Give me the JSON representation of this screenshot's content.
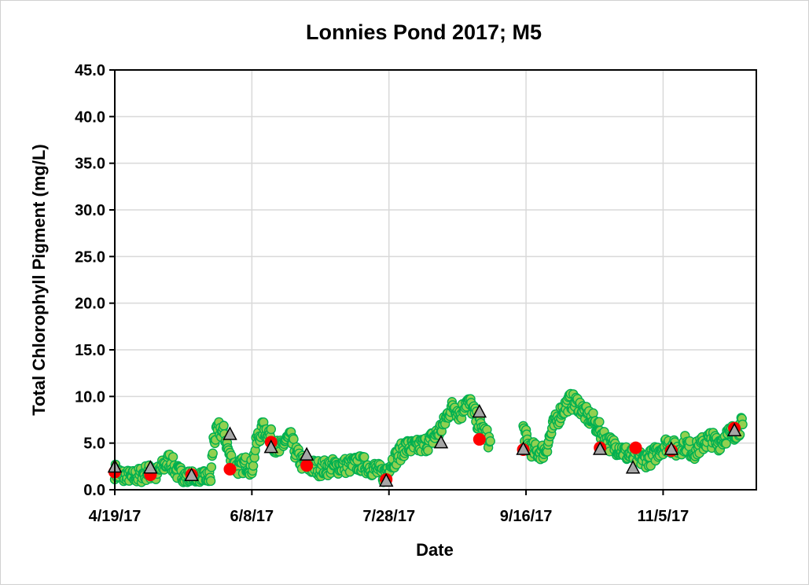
{
  "chart_data": {
    "type": "scatter",
    "title": "Lonnies Pond 2017; M5",
    "xlabel": "Date",
    "ylabel": "Total Chlorophyll Pigment (mg/L)",
    "xlim": [
      "2017-04-19",
      "2017-12-09"
    ],
    "ylim": [
      0,
      45
    ],
    "y_ticks": [
      "0.0",
      "5.0",
      "10.0",
      "15.0",
      "20.0",
      "25.0",
      "30.0",
      "35.0",
      "40.0",
      "45.0"
    ],
    "x_ticks": [
      "4/19/17",
      "6/8/17",
      "7/28/17",
      "9/16/17",
      "11/5/17"
    ],
    "grid": true,
    "legend": "none",
    "colors": {
      "continuous_fill": "#92d050",
      "continuous_edge": "#00b050",
      "red_points": "#ff0000",
      "triangle_fill": "#a6a6a6",
      "triangle_edge": "#000000"
    },
    "series": [
      {
        "marker": "circle-green",
        "gaps": [
          [
            "2017-09-03",
            "2017-09-15"
          ]
        ],
        "points": [
          [
            "2017-04-19",
            2.0
          ],
          [
            "2017-04-22",
            1.4
          ],
          [
            "2017-04-25",
            1.2
          ],
          [
            "2017-04-28",
            1.5
          ],
          [
            "2017-05-01",
            1.9
          ],
          [
            "2017-05-04",
            1.6
          ],
          [
            "2017-05-07",
            2.6
          ],
          [
            "2017-05-09",
            3.2
          ],
          [
            "2017-05-12",
            1.8
          ],
          [
            "2017-05-15",
            1.3
          ],
          [
            "2017-05-18",
            1.2
          ],
          [
            "2017-05-21",
            1.1
          ],
          [
            "2017-05-24",
            1.2
          ],
          [
            "2017-05-25",
            5.2
          ],
          [
            "2017-05-27",
            6.5
          ],
          [
            "2017-05-29",
            6.0
          ],
          [
            "2017-05-31",
            3.5
          ],
          [
            "2017-06-02",
            2.4
          ],
          [
            "2017-06-04",
            2.5
          ],
          [
            "2017-06-06",
            2.8
          ],
          [
            "2017-06-08",
            2.3
          ],
          [
            "2017-06-10",
            5.5
          ],
          [
            "2017-06-12",
            6.5
          ],
          [
            "2017-06-14",
            6.2
          ],
          [
            "2017-06-16",
            5.0
          ],
          [
            "2017-06-18",
            4.2
          ],
          [
            "2017-06-20",
            5.2
          ],
          [
            "2017-06-22",
            5.5
          ],
          [
            "2017-06-24",
            4.0
          ],
          [
            "2017-06-26",
            3.0
          ],
          [
            "2017-06-29",
            2.5
          ],
          [
            "2017-07-03",
            2.3
          ],
          [
            "2017-07-08",
            2.5
          ],
          [
            "2017-07-13",
            2.6
          ],
          [
            "2017-07-18",
            2.8
          ],
          [
            "2017-07-23",
            2.2
          ],
          [
            "2017-07-26",
            1.6
          ],
          [
            "2017-07-28",
            2.6
          ],
          [
            "2017-07-31",
            3.6
          ],
          [
            "2017-08-03",
            4.6
          ],
          [
            "2017-08-07",
            4.5
          ],
          [
            "2017-08-11",
            5.0
          ],
          [
            "2017-08-14",
            5.8
          ],
          [
            "2017-08-17",
            7.0
          ],
          [
            "2017-08-19",
            8.5
          ],
          [
            "2017-08-21",
            9.0
          ],
          [
            "2017-08-23",
            8.0
          ],
          [
            "2017-08-25",
            9.5
          ],
          [
            "2017-08-27",
            9.0
          ],
          [
            "2017-08-29",
            7.5
          ],
          [
            "2017-09-01",
            6.0
          ],
          [
            "2017-09-03",
            5.0
          ],
          [
            "2017-09-15",
            6.5
          ],
          [
            "2017-09-17",
            4.6
          ],
          [
            "2017-09-20",
            4.0
          ],
          [
            "2017-09-23",
            4.2
          ],
          [
            "2017-09-26",
            6.8
          ],
          [
            "2017-09-29",
            8.5
          ],
          [
            "2017-10-02",
            9.5
          ],
          [
            "2017-10-05",
            9.2
          ],
          [
            "2017-10-08",
            8.0
          ],
          [
            "2017-10-11",
            7.2
          ],
          [
            "2017-10-14",
            5.8
          ],
          [
            "2017-10-17",
            4.8
          ],
          [
            "2017-10-20",
            4.5
          ],
          [
            "2017-10-23",
            3.8
          ],
          [
            "2017-10-26",
            3.5
          ],
          [
            "2017-10-29",
            3.2
          ],
          [
            "2017-11-01",
            3.5
          ],
          [
            "2017-11-04",
            4.5
          ],
          [
            "2017-11-07",
            5.0
          ],
          [
            "2017-11-10",
            4.2
          ],
          [
            "2017-11-13",
            5.0
          ],
          [
            "2017-11-16",
            4.0
          ],
          [
            "2017-11-19",
            4.8
          ],
          [
            "2017-11-22",
            5.5
          ],
          [
            "2017-11-25",
            5.0
          ],
          [
            "2017-11-28",
            5.8
          ],
          [
            "2017-12-01",
            6.2
          ],
          [
            "2017-12-04",
            7.0
          ]
        ]
      },
      {
        "marker": "circle-red",
        "points": [
          [
            "2017-04-19",
            1.9
          ],
          [
            "2017-05-02",
            1.6
          ],
          [
            "2017-05-17",
            1.6
          ],
          [
            "2017-05-31",
            2.2
          ],
          [
            "2017-06-15",
            5.1
          ],
          [
            "2017-06-28",
            2.6
          ],
          [
            "2017-07-27",
            1.1
          ],
          [
            "2017-08-30",
            5.4
          ],
          [
            "2017-09-15",
            4.3
          ],
          [
            "2017-10-13",
            4.5
          ],
          [
            "2017-10-26",
            4.5
          ],
          [
            "2017-11-08",
            4.2
          ],
          [
            "2017-12-01",
            6.6
          ]
        ]
      },
      {
        "marker": "triangle-gray",
        "points": [
          [
            "2017-04-19",
            2.4
          ],
          [
            "2017-05-02",
            2.3
          ],
          [
            "2017-05-17",
            1.5
          ],
          [
            "2017-05-31",
            5.9
          ],
          [
            "2017-06-15",
            4.5
          ],
          [
            "2017-06-28",
            3.7
          ],
          [
            "2017-07-27",
            0.9
          ],
          [
            "2017-08-16",
            5.0
          ],
          [
            "2017-08-30",
            8.3
          ],
          [
            "2017-09-15",
            4.3
          ],
          [
            "2017-10-13",
            4.3
          ],
          [
            "2017-10-25",
            2.3
          ],
          [
            "2017-11-08",
            4.3
          ],
          [
            "2017-12-01",
            6.3
          ]
        ]
      }
    ]
  }
}
